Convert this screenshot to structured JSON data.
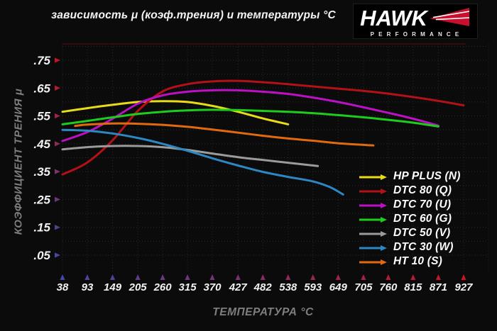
{
  "title": "зависимость μ (коэф.трения) и температуры °C",
  "logo": {
    "brand": "HAWK",
    "subtitle": "PERFORMANCE",
    "wing_color": "#c8102e"
  },
  "colors": {
    "background": "#0b0b0c",
    "grid": "#2a2a31",
    "axis_blue": "#4646a5",
    "axis_red": "#c81423",
    "tick_text": "#f2f2f2",
    "axis_title_text": "#7e7e7e"
  },
  "chart_data": {
    "type": "line",
    "title": "зависимость μ (коэф.трения) и температуры °C",
    "xlabel": "ТЕМПЕРАТУРА °C",
    "ylabel": "КОЭФФИЦИЕНТ ТРЕНИЯ μ",
    "x_ticks": [
      38,
      93,
      149,
      205,
      260,
      315,
      370,
      427,
      482,
      538,
      593,
      649,
      705,
      760,
      815,
      871,
      927
    ],
    "y_ticks": [
      0.05,
      0.15,
      0.25,
      0.35,
      0.45,
      0.55,
      0.65,
      0.75
    ],
    "y_tick_labels": [
      ".05",
      ".15",
      ".25",
      ".35",
      ".45",
      ".55",
      ".65",
      ".75"
    ],
    "xlim": [
      38,
      940
    ],
    "ylim": [
      0,
      0.8
    ],
    "grid": true,
    "grid_style": "dotted",
    "legend_position": "bottom-right",
    "series": [
      {
        "name": "HP PLUS (N)",
        "color": "#e8dc18",
        "x": [
          38,
          93,
          149,
          205,
          260,
          315,
          370,
          427,
          482,
          538
        ],
        "y": [
          0.565,
          0.578,
          0.59,
          0.6,
          0.603,
          0.6,
          0.586,
          0.565,
          0.541,
          0.52
        ]
      },
      {
        "name": "DTC 80 (Q)",
        "color": "#b21117",
        "x": [
          38,
          93,
          149,
          205,
          260,
          315,
          370,
          427,
          482,
          538,
          593,
          649,
          705,
          760,
          815,
          871,
          927
        ],
        "y": [
          0.34,
          0.383,
          0.462,
          0.568,
          0.638,
          0.664,
          0.674,
          0.676,
          0.671,
          0.664,
          0.656,
          0.648,
          0.64,
          0.63,
          0.618,
          0.604,
          0.588
        ]
      },
      {
        "name": "DTC 70 (U)",
        "color": "#bb10c4",
        "x": [
          38,
          93,
          149,
          205,
          260,
          315,
          370,
          427,
          482,
          538,
          593,
          649,
          705,
          760,
          815,
          871
        ],
        "y": [
          0.46,
          0.492,
          0.54,
          0.594,
          0.624,
          0.637,
          0.642,
          0.642,
          0.637,
          0.629,
          0.616,
          0.6,
          0.581,
          0.561,
          0.54,
          0.515
        ]
      },
      {
        "name": "DTC 60 (G)",
        "color": "#1ecc1e",
        "x": [
          38,
          93,
          149,
          205,
          260,
          315,
          370,
          427,
          482,
          538,
          593,
          649,
          705,
          760,
          815,
          871
        ],
        "y": [
          0.52,
          0.532,
          0.545,
          0.557,
          0.565,
          0.57,
          0.572,
          0.571,
          0.568,
          0.565,
          0.56,
          0.553,
          0.545,
          0.536,
          0.526,
          0.512
        ]
      },
      {
        "name": "DTC 50 (V)",
        "color": "#9b9b9b",
        "x": [
          38,
          93,
          149,
          205,
          260,
          315,
          370,
          427,
          482,
          538,
          604
        ],
        "y": [
          0.43,
          0.438,
          0.442,
          0.442,
          0.438,
          0.428,
          0.415,
          0.402,
          0.392,
          0.382,
          0.37
        ]
      },
      {
        "name": "DTC 30 (W)",
        "color": "#2d87c3",
        "x": [
          38,
          93,
          149,
          205,
          260,
          315,
          370,
          427,
          482,
          538,
          593,
          630,
          660
        ],
        "y": [
          0.5,
          0.497,
          0.487,
          0.471,
          0.45,
          0.425,
          0.398,
          0.372,
          0.349,
          0.331,
          0.315,
          0.295,
          0.268
        ]
      },
      {
        "name": "HT 10 (S)",
        "color": "#e06a10",
        "x": [
          66,
          93,
          149,
          205,
          260,
          315,
          370,
          427,
          482,
          538,
          593,
          649,
          705,
          727
        ],
        "y": [
          0.514,
          0.519,
          0.523,
          0.522,
          0.518,
          0.511,
          0.501,
          0.49,
          0.479,
          0.469,
          0.461,
          0.452,
          0.446,
          0.444
        ]
      }
    ]
  }
}
